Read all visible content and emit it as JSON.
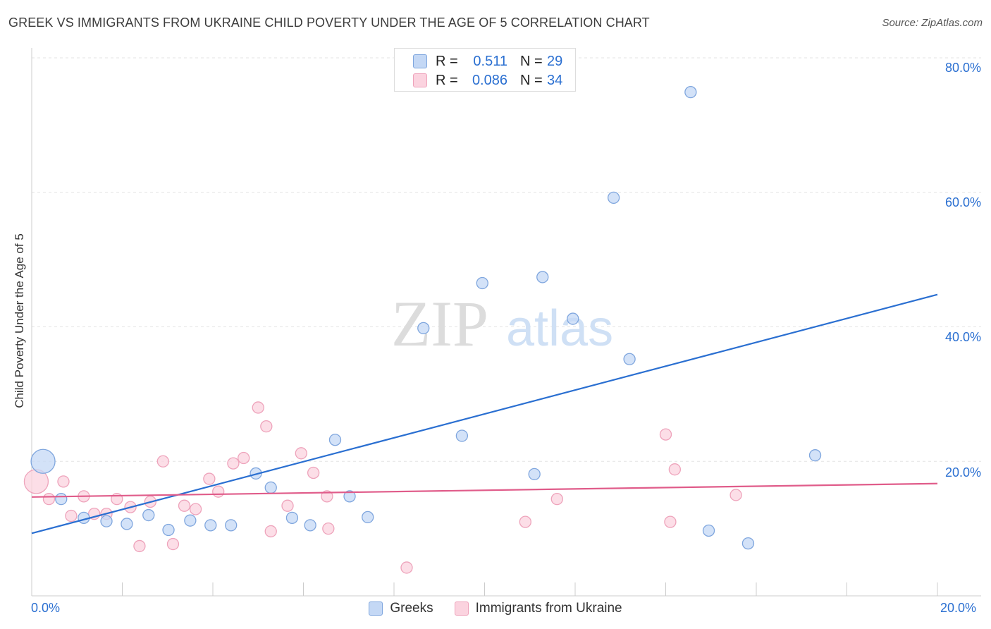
{
  "title": "GREEK VS IMMIGRANTS FROM UKRAINE CHILD POVERTY UNDER THE AGE OF 5 CORRELATION CHART",
  "source": "Source: ZipAtlas.com",
  "watermark": {
    "zip": "ZIP",
    "atlas": "atlas"
  },
  "stats": {
    "r_label": "R =",
    "n_label": "N =",
    "rows": [
      {
        "series": "Greeks",
        "r": "0.511",
        "n": "29",
        "color": "#2a6fd1"
      },
      {
        "series": "Immigrants from Ukraine",
        "r": "0.086",
        "n": "34",
        "color": "#e05c8a"
      }
    ]
  },
  "legend": {
    "greeks": "Greeks",
    "ukraine": "Immigrants from Ukraine"
  },
  "chart_data": {
    "type": "scatter",
    "title": "GREEK VS IMMIGRANTS FROM UKRAINE CHILD POVERTY UNDER THE AGE OF 5 CORRELATION CHART",
    "xlabel": "",
    "ylabel": "Child Poverty Under the Age of 5",
    "xlim": [
      0,
      20
    ],
    "ylim": [
      0,
      83
    ],
    "x_tick_labels": [
      "0.0%",
      "20.0%"
    ],
    "y_ticks": [
      20,
      40,
      60,
      80
    ],
    "y_tick_labels": [
      "20.0%",
      "40.0%",
      "60.0%",
      "80.0%"
    ],
    "grid": true,
    "legend_position": "bottom",
    "series": [
      {
        "name": "Greeks",
        "color": "#2a6fd1",
        "fill": "#c4d8f5",
        "stroke": "#7fa6de",
        "trend": {
          "x0": 0,
          "y0": 9.3,
          "x1": 20,
          "y1": 44.8
        },
        "points": [
          {
            "x": 0.25,
            "y": 20.0,
            "big": true
          },
          {
            "x": 0.65,
            "y": 14.4
          },
          {
            "x": 1.15,
            "y": 11.6
          },
          {
            "x": 1.65,
            "y": 11.1
          },
          {
            "x": 2.1,
            "y": 10.7
          },
          {
            "x": 2.58,
            "y": 12.0
          },
          {
            "x": 3.02,
            "y": 9.8
          },
          {
            "x": 3.5,
            "y": 11.2
          },
          {
            "x": 3.95,
            "y": 10.5
          },
          {
            "x": 4.4,
            "y": 10.5
          },
          {
            "x": 4.95,
            "y": 18.2
          },
          {
            "x": 5.28,
            "y": 16.1
          },
          {
            "x": 5.75,
            "y": 11.6
          },
          {
            "x": 6.15,
            "y": 10.5
          },
          {
            "x": 6.7,
            "y": 23.2
          },
          {
            "x": 7.02,
            "y": 14.8
          },
          {
            "x": 7.42,
            "y": 11.7
          },
          {
            "x": 8.65,
            "y": 39.8
          },
          {
            "x": 9.5,
            "y": 23.8
          },
          {
            "x": 9.95,
            "y": 46.5
          },
          {
            "x": 11.1,
            "y": 18.1
          },
          {
            "x": 11.28,
            "y": 47.4
          },
          {
            "x": 11.95,
            "y": 41.2
          },
          {
            "x": 12.85,
            "y": 59.2
          },
          {
            "x": 13.2,
            "y": 35.2
          },
          {
            "x": 14.55,
            "y": 74.9
          },
          {
            "x": 14.95,
            "y": 9.7
          },
          {
            "x": 15.82,
            "y": 7.8
          },
          {
            "x": 17.3,
            "y": 20.9
          }
        ]
      },
      {
        "name": "Immigrants from Ukraine",
        "color": "#e05c8a",
        "fill": "#fbd3df",
        "stroke": "#eea3bb",
        "trend": {
          "x0": 0,
          "y0": 14.7,
          "x1": 20,
          "y1": 16.7
        },
        "points": [
          {
            "x": 0.1,
            "y": 17.0,
            "big": true
          },
          {
            "x": 0.38,
            "y": 14.4
          },
          {
            "x": 0.7,
            "y": 17.0
          },
          {
            "x": 0.87,
            "y": 11.9
          },
          {
            "x": 1.15,
            "y": 14.8
          },
          {
            "x": 1.38,
            "y": 12.2
          },
          {
            "x": 1.65,
            "y": 12.2
          },
          {
            "x": 1.88,
            "y": 14.4
          },
          {
            "x": 2.18,
            "y": 13.2
          },
          {
            "x": 2.38,
            "y": 7.4
          },
          {
            "x": 2.62,
            "y": 14.0
          },
          {
            "x": 2.9,
            "y": 20.0
          },
          {
            "x": 3.12,
            "y": 7.7
          },
          {
            "x": 3.37,
            "y": 13.4
          },
          {
            "x": 3.62,
            "y": 12.9
          },
          {
            "x": 3.92,
            "y": 17.4
          },
          {
            "x": 4.12,
            "y": 15.5
          },
          {
            "x": 4.45,
            "y": 19.7
          },
          {
            "x": 4.68,
            "y": 20.5
          },
          {
            "x": 5.0,
            "y": 28.0
          },
          {
            "x": 5.18,
            "y": 25.2
          },
          {
            "x": 5.28,
            "y": 9.6
          },
          {
            "x": 5.65,
            "y": 13.4
          },
          {
            "x": 5.95,
            "y": 21.2
          },
          {
            "x": 6.22,
            "y": 18.3
          },
          {
            "x": 6.52,
            "y": 14.8
          },
          {
            "x": 6.55,
            "y": 10.0
          },
          {
            "x": 8.28,
            "y": 4.2
          },
          {
            "x": 10.9,
            "y": 11.0
          },
          {
            "x": 11.6,
            "y": 14.4
          },
          {
            "x": 14.0,
            "y": 24.0
          },
          {
            "x": 14.1,
            "y": 11.0
          },
          {
            "x": 14.2,
            "y": 18.8
          },
          {
            "x": 15.55,
            "y": 15.0
          }
        ]
      }
    ]
  }
}
